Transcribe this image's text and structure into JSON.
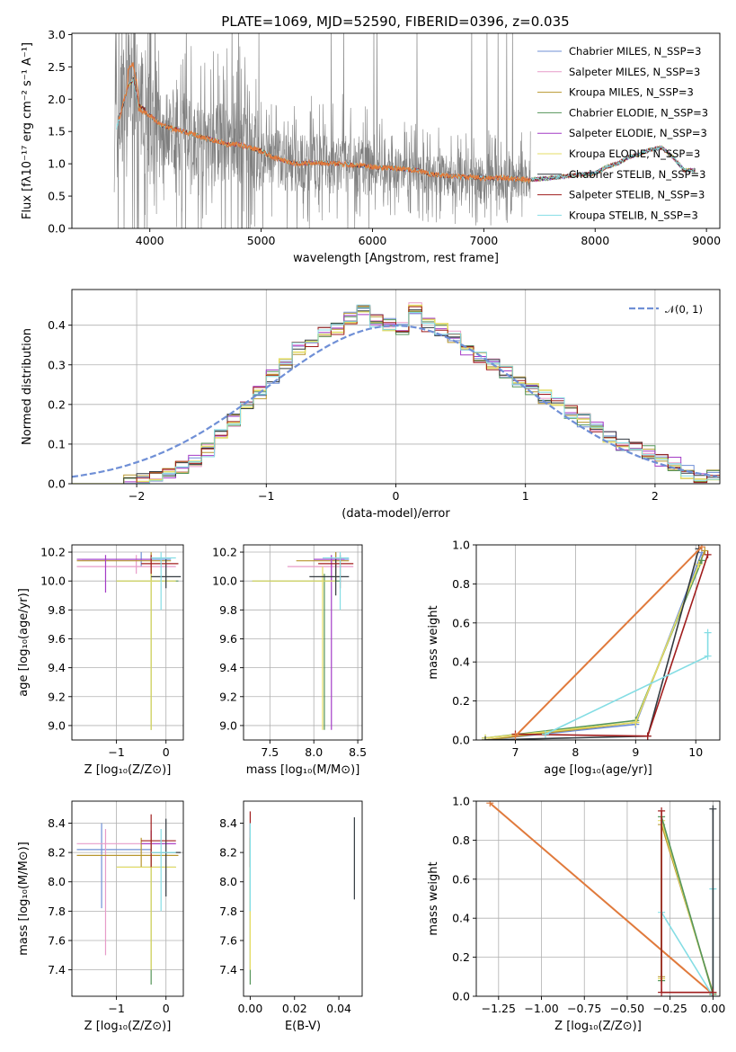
{
  "figure_title": "PLATE=1069, MJD=52590, FIBERID=0396, z=0.035",
  "series_colors": [
    "#6f8fd6",
    "#e79bc9",
    "#b8962e",
    "#55955a",
    "#a43bc6",
    "#e4dc66",
    "#333a40",
    "#a01d1d",
    "#84dde4"
  ],
  "obs_color": "#808080",
  "mod_color": "#e07a3c",
  "chart_data": [
    {
      "id": "spectrum",
      "type": "line",
      "title": "PLATE=1069, MJD=52590, FIBERID=0396, z=0.035",
      "xlabel": "wavelength [Angstrom, rest frame]",
      "ylabel": "Flux [fλ10⁻¹⁷ erg cm⁻² s⁻¹ A⁻¹]",
      "xlim": [
        3300,
        9120
      ],
      "ylim": [
        0,
        3.02
      ],
      "xticks": [
        "4000",
        "5000",
        "6000",
        "7000",
        "8000",
        "9000"
      ],
      "yticks": [
        "0.0",
        "0.5",
        "1.0",
        "1.5",
        "2.0",
        "2.5",
        "3.0"
      ],
      "grid": false,
      "legend_position": "top-right",
      "legend": [
        "Chabrier MILES, N_SSP=3",
        "Salpeter MILES, N_SSP=3",
        "Kroupa MILES, N_SSP=3",
        "Chabrier ELODIE, N_SSP=3",
        "Salpeter ELODIE, N_SSP=3",
        "Kroupa ELODIE, N_SSP=3",
        "Chabrier STELIB, N_SSP=3",
        "Salpeter STELIB, N_SSP=3",
        "Kroupa STELIB, N_SSP=3"
      ],
      "continuum": {
        "x": [
          3700,
          3750,
          3800,
          3850,
          3900,
          4000,
          4100,
          4200,
          4300,
          4500,
          4700,
          4800,
          4900,
          5000,
          5100,
          5200,
          5300,
          5500,
          5700,
          5900,
          6000,
          6200,
          6400,
          6500,
          6600,
          6800,
          7000,
          7200,
          7400,
          7600,
          7800,
          8000,
          8100,
          8200,
          8300,
          8400,
          8500,
          8600,
          8700,
          8800
        ],
        "y": [
          1.55,
          1.85,
          2.2,
          2.3,
          1.85,
          1.75,
          1.6,
          1.55,
          1.5,
          1.4,
          1.3,
          1.3,
          1.25,
          1.2,
          1.1,
          1.05,
          1.0,
          1.02,
          1.0,
          0.97,
          0.95,
          0.93,
          0.9,
          0.85,
          0.82,
          0.8,
          0.78,
          0.78,
          0.75,
          0.78,
          0.82,
          0.85,
          0.95,
          1.0,
          1.1,
          1.15,
          1.22,
          1.25,
          1.1,
          0.9
        ]
      },
      "observed_range": [
        3680,
        7420
      ]
    },
    {
      "id": "residuals",
      "type": "line",
      "xlabel": "(data-model)/error",
      "ylabel": "Normed distribution",
      "xlim": [
        -2.5,
        2.5
      ],
      "ylim": [
        0,
        0.49
      ],
      "xticks": [
        "−2",
        "−1",
        "0",
        "1",
        "2"
      ],
      "yticks": [
        "0.0",
        "0.1",
        "0.2",
        "0.3",
        "0.4"
      ],
      "grid": true,
      "legend_position": "top-right",
      "gaussian_label": "𝒩(0, 1)",
      "bin_width": 0.1,
      "bins_start": -2.5,
      "histogram": [
        0.0,
        0.0,
        0.0,
        0.0,
        0.005,
        0.01,
        0.018,
        0.028,
        0.042,
        0.06,
        0.085,
        0.12,
        0.16,
        0.2,
        0.23,
        0.27,
        0.3,
        0.34,
        0.36,
        0.38,
        0.39,
        0.42,
        0.44,
        0.41,
        0.4,
        0.39,
        0.44,
        0.4,
        0.39,
        0.37,
        0.34,
        0.32,
        0.3,
        0.28,
        0.26,
        0.24,
        0.22,
        0.2,
        0.18,
        0.16,
        0.14,
        0.12,
        0.1,
        0.09,
        0.08,
        0.06,
        0.05,
        0.03,
        0.02,
        0.02
      ]
    },
    {
      "id": "age-vs-Z",
      "type": "scatter",
      "xlabel": "Z [log₁₀(Z/Z⊙)]",
      "ylabel": "age  [log₁₀(age/yr)]",
      "xlim": [
        -1.9,
        0.35
      ],
      "ylim": [
        8.9,
        10.25
      ],
      "xticks": [
        "−1",
        "0"
      ],
      "xtick_values": [
        -1,
        0
      ],
      "yticks": [
        "9.0",
        "9.2",
        "9.4",
        "9.6",
        "9.8",
        "10.0",
        "10.2"
      ],
      "ytick_values": [
        9.0,
        9.2,
        9.4,
        9.6,
        9.8,
        10.0,
        10.2
      ],
      "grid": true,
      "points": [
        {
          "s": 0,
          "x": -0.5,
          "y": 10.15,
          "xlo": -1.7,
          "xhi": 0.1,
          "ylo": 10.1,
          "yhi": 10.2
        },
        {
          "s": 1,
          "x": -0.6,
          "y": 10.1,
          "xlo": -1.8,
          "xhi": 0.2,
          "ylo": 10.05,
          "yhi": 10.18
        },
        {
          "s": 2,
          "x": -0.3,
          "y": 10.14,
          "xlo": -1.8,
          "xhi": 0.1,
          "ylo": 10.0,
          "yhi": 10.2
        },
        {
          "s": 3,
          "x": -0.3,
          "y": 10.0,
          "xlo": -1.0,
          "xhi": 0.25,
          "ylo": 8.97,
          "yhi": 10.05
        },
        {
          "s": 4,
          "x": -1.22,
          "y": 10.15,
          "xlo": -1.8,
          "xhi": -0.3,
          "ylo": 9.92,
          "yhi": 10.18
        },
        {
          "s": 5,
          "x": -0.3,
          "y": 10.0,
          "xlo": -1.0,
          "xhi": 0.2,
          "ylo": 8.97,
          "yhi": 10.1
        },
        {
          "s": 6,
          "x": 0.0,
          "y": 10.03,
          "xlo": -0.3,
          "xhi": 0.3,
          "ylo": 9.95,
          "yhi": 10.15
        },
        {
          "s": 7,
          "x": -0.3,
          "y": 10.12,
          "xlo": -0.5,
          "xhi": 0.25,
          "ylo": 10.05,
          "yhi": 10.18
        },
        {
          "s": 8,
          "x": -0.1,
          "y": 10.16,
          "xlo": -0.3,
          "xhi": 0.2,
          "ylo": 9.8,
          "yhi": 10.2
        }
      ]
    },
    {
      "id": "age-vs-mass",
      "type": "scatter",
      "xlabel": "mass [log₁₀(M/M⊙)]",
      "ylabel": "",
      "xlim": [
        7.2,
        8.55
      ],
      "ylim": [
        8.9,
        10.25
      ],
      "xticks": [
        "7.5",
        "8.0",
        "8.5"
      ],
      "xtick_values": [
        7.5,
        8.0,
        8.5
      ],
      "yticks": [
        "9.0",
        "9.2",
        "9.4",
        "9.6",
        "9.8",
        "10.0",
        "10.2"
      ],
      "ytick_values": [
        9.0,
        9.2,
        9.4,
        9.6,
        9.8,
        10.0,
        10.2
      ],
      "grid": true,
      "points": [
        {
          "s": 0,
          "x": 8.25,
          "y": 10.15,
          "xlo": 8.0,
          "xhi": 8.4,
          "ylo": 10.05,
          "yhi": 10.2
        },
        {
          "s": 1,
          "x": 8.2,
          "y": 10.1,
          "xlo": 7.7,
          "xhi": 8.45,
          "ylo": 10.0,
          "yhi": 10.15
        },
        {
          "s": 2,
          "x": 8.25,
          "y": 10.14,
          "xlo": 7.8,
          "xhi": 8.4,
          "ylo": 10.0,
          "yhi": 10.2
        },
        {
          "s": 3,
          "x": 8.12,
          "y": 10.0,
          "xlo": 7.3,
          "xhi": 8.3,
          "ylo": 8.97,
          "yhi": 10.05
        },
        {
          "s": 4,
          "x": 8.2,
          "y": 10.15,
          "xlo": 8.0,
          "xhi": 8.35,
          "ylo": 8.97,
          "yhi": 10.18
        },
        {
          "s": 5,
          "x": 8.1,
          "y": 10.0,
          "xlo": 7.3,
          "xhi": 8.25,
          "ylo": 8.97,
          "yhi": 10.1
        },
        {
          "s": 6,
          "x": 8.25,
          "y": 10.03,
          "xlo": 7.95,
          "xhi": 8.4,
          "ylo": 9.9,
          "yhi": 10.15
        },
        {
          "s": 7,
          "x": 8.3,
          "y": 10.12,
          "xlo": 8.05,
          "xhi": 8.45,
          "ylo": 9.95,
          "yhi": 10.18
        },
        {
          "s": 8,
          "x": 8.3,
          "y": 10.16,
          "xlo": 8.1,
          "xhi": 8.4,
          "ylo": 9.8,
          "yhi": 10.2
        }
      ]
    },
    {
      "id": "massweight-vs-age",
      "type": "line",
      "xlabel": "age  [log₁₀(age/yr)]",
      "ylabel": "mass weight",
      "xlim": [
        6.35,
        10.4
      ],
      "ylim": [
        0,
        1.0
      ],
      "xticks": [
        "7",
        "8",
        "9",
        "10"
      ],
      "xtick_values": [
        7,
        8,
        9,
        10
      ],
      "yticks": [
        "0.0",
        "0.2",
        "0.4",
        "0.6",
        "0.8",
        "1.0"
      ],
      "ytick_values": [
        0.0,
        0.2,
        0.4,
        0.6,
        0.8,
        1.0
      ],
      "grid": true,
      "series": [
        {
          "s": 0,
          "x": [
            6.5,
            9.0,
            10.1
          ],
          "y": [
            0.0,
            0.08,
            0.96
          ]
        },
        {
          "s": 2,
          "x": [
            6.5,
            9.0,
            10.15
          ],
          "y": [
            0.0,
            0.09,
            0.97
          ]
        },
        {
          "s": 3,
          "x": [
            6.5,
            9.0,
            10.1
          ],
          "y": [
            0.01,
            0.1,
            0.92
          ]
        },
        {
          "s": 5,
          "x": [
            6.5,
            9.0,
            10.05
          ],
          "y": [
            0.01,
            0.09,
            0.9
          ]
        },
        {
          "s": 6,
          "x": [
            6.5,
            9.2,
            10.05
          ],
          "y": [
            0.0,
            0.02,
            0.98
          ]
        },
        {
          "s": 7,
          "x": [
            7.0,
            9.2,
            10.2
          ],
          "y": [
            0.03,
            0.02,
            0.95
          ]
        },
        {
          "s": 8,
          "x": [
            7.5,
            10.2,
            10.2
          ],
          "y": [
            0.03,
            0.43,
            0.55
          ]
        },
        {
          "s": 9,
          "x": [
            7.0,
            10.1
          ],
          "y": [
            0.02,
            0.99
          ]
        }
      ]
    },
    {
      "id": "mass-vs-Z",
      "type": "scatter",
      "xlabel": "Z [log₁₀(Z/Z⊙)]",
      "ylabel": "mass [log₁₀(M/M⊙)]",
      "xlim": [
        -1.9,
        0.35
      ],
      "ylim": [
        7.22,
        8.55
      ],
      "xticks": [
        "−1",
        "0"
      ],
      "xtick_values": [
        -1,
        0
      ],
      "yticks": [
        "7.4",
        "7.6",
        "7.8",
        "8.0",
        "8.2",
        "8.4"
      ],
      "ytick_values": [
        7.4,
        7.6,
        7.8,
        8.0,
        8.2,
        8.4
      ],
      "grid": true,
      "points": [
        {
          "s": 0,
          "x": -1.3,
          "y": 8.22,
          "xlo": -1.8,
          "xhi": -0.3,
          "ylo": 7.82,
          "yhi": 8.4
        },
        {
          "s": 1,
          "x": -1.22,
          "y": 8.26,
          "xlo": -1.8,
          "xhi": 0.2,
          "ylo": 7.5,
          "yhi": 8.36
        },
        {
          "s": 2,
          "x": -0.5,
          "y": 8.18,
          "xlo": -1.8,
          "xhi": 0.25,
          "ylo": 8.1,
          "yhi": 8.3
        },
        {
          "s": 3,
          "x": -0.3,
          "y": 8.1,
          "xlo": -1.0,
          "xhi": 0.2,
          "ylo": 7.3,
          "yhi": 8.3
        },
        {
          "s": 4,
          "x": -0.3,
          "y": 8.26,
          "xlo": -0.5,
          "xhi": 0.2,
          "ylo": 8.1,
          "yhi": 8.35
        },
        {
          "s": 5,
          "x": -0.3,
          "y": 8.1,
          "xlo": -1.0,
          "xhi": 0.2,
          "ylo": 7.4,
          "yhi": 8.3
        },
        {
          "s": 6,
          "x": 0.0,
          "y": 8.2,
          "xlo": -0.3,
          "xhi": 0.3,
          "ylo": 7.9,
          "yhi": 8.43
        },
        {
          "s": 7,
          "x": -0.3,
          "y": 8.28,
          "xlo": -0.5,
          "xhi": 0.2,
          "ylo": 8.1,
          "yhi": 8.46
        },
        {
          "s": 8,
          "x": -0.1,
          "y": 8.2,
          "xlo": -0.3,
          "xhi": 0.2,
          "ylo": 7.8,
          "yhi": 8.36
        }
      ]
    },
    {
      "id": "mass-vs-ebv",
      "type": "scatter",
      "xlabel": "E(B-V)",
      "ylabel": "",
      "xlim": [
        -0.003,
        0.0505
      ],
      "ylim": [
        7.22,
        8.55
      ],
      "xticks": [
        "0.00",
        "0.02",
        "0.04"
      ],
      "xtick_values": [
        0.0,
        0.02,
        0.04
      ],
      "yticks": [
        "7.4",
        "7.6",
        "7.8",
        "8.0",
        "8.2",
        "8.4"
      ],
      "ytick_values": [
        7.4,
        7.6,
        7.8,
        8.0,
        8.2,
        8.4
      ],
      "grid": false,
      "points": [
        {
          "s": 0,
          "x": 0.0,
          "y": 8.1,
          "xlo": 0.0,
          "xhi": 0.0,
          "ylo": 7.8,
          "yhi": 8.4
        },
        {
          "s": 3,
          "x": 0.0,
          "y": 8.0,
          "xlo": 0.0,
          "xhi": 0.0,
          "ylo": 7.3,
          "yhi": 8.3
        },
        {
          "s": 5,
          "x": 0.0,
          "y": 7.9,
          "xlo": 0.0,
          "xhi": 0.0,
          "ylo": 7.4,
          "yhi": 8.3
        },
        {
          "s": 7,
          "x": 0.0,
          "y": 8.3,
          "xlo": 0.0,
          "xhi": 0.0,
          "ylo": 8.1,
          "yhi": 8.48
        },
        {
          "s": 8,
          "x": 0.0,
          "y": 8.1,
          "xlo": 0.0,
          "xhi": 0.0,
          "ylo": 7.8,
          "yhi": 8.4
        },
        {
          "s": 6,
          "x": 0.047,
          "y": 8.15,
          "xlo": 0.047,
          "xhi": 0.047,
          "ylo": 7.88,
          "yhi": 8.44
        }
      ]
    },
    {
      "id": "massweight-vs-Z",
      "type": "line",
      "xlabel": "Z [log₁₀(Z/Z⊙)]",
      "ylabel": "mass weight",
      "xlim": [
        -1.38,
        0.04
      ],
      "ylim": [
        0,
        1.0
      ],
      "xticks": [
        "−1.25",
        "−1.00",
        "−0.75",
        "−0.50",
        "−0.25",
        "0.00"
      ],
      "xtick_values": [
        -1.25,
        -1.0,
        -0.75,
        -0.5,
        -0.25,
        0.0
      ],
      "yticks": [
        "0.0",
        "0.2",
        "0.4",
        "0.6",
        "0.8",
        "1.0"
      ],
      "ytick_values": [
        0.0,
        0.2,
        0.4,
        0.6,
        0.8,
        1.0
      ],
      "grid": true,
      "series": [
        {
          "s": 9,
          "x": [
            -1.3,
            0.0
          ],
          "y": [
            0.99,
            0.01
          ]
        },
        {
          "s": 2,
          "x": [
            -0.3,
            -0.3,
            0.0
          ],
          "y": [
            0.1,
            0.88,
            0.02
          ]
        },
        {
          "s": 5,
          "x": [
            -0.3,
            -0.3,
            0.0
          ],
          "y": [
            0.09,
            0.9,
            0.01
          ]
        },
        {
          "s": 3,
          "x": [
            -0.3,
            -0.3,
            0.0
          ],
          "y": [
            0.08,
            0.92,
            0.01
          ]
        },
        {
          "s": 8,
          "x": [
            -0.3,
            0.0,
            0.0
          ],
          "y": [
            0.43,
            0.0,
            0.55
          ]
        },
        {
          "s": 6,
          "x": [
            0.0,
            0.0
          ],
          "y": [
            0.02,
            0.96
          ]
        },
        {
          "s": 7,
          "x": [
            -0.3,
            -0.3,
            0.0
          ],
          "y": [
            0.95,
            0.02,
            0.02
          ]
        }
      ]
    }
  ]
}
